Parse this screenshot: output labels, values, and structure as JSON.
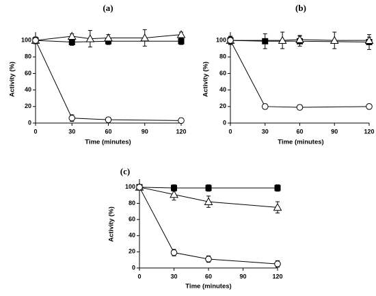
{
  "chart_data": [
    {
      "type": "line",
      "panel_label": "(a)",
      "xlabel": "Time (minutes)",
      "ylabel": "Activity (%)",
      "xlim": [
        0,
        120
      ],
      "ylim": [
        0,
        110
      ],
      "xticks": [
        0,
        30,
        60,
        90,
        120
      ],
      "yticks": [
        0,
        20,
        40,
        60,
        80,
        100
      ],
      "series": [
        {
          "marker": "square",
          "x": [
            0,
            30,
            60,
            120
          ],
          "y": [
            100,
            98,
            99,
            99
          ],
          "err": [
            4,
            4,
            4,
            4
          ]
        },
        {
          "marker": "triangle",
          "x": [
            0,
            30,
            45,
            60,
            90,
            120
          ],
          "y": [
            100,
            105,
            102,
            103,
            103,
            107
          ],
          "err": [
            4,
            3,
            10,
            4,
            10,
            3
          ]
        },
        {
          "marker": "circle",
          "x": [
            0,
            30,
            60,
            120
          ],
          "y": [
            100,
            6,
            4,
            3
          ],
          "err": [
            4,
            4,
            3,
            3
          ]
        }
      ]
    },
    {
      "type": "line",
      "panel_label": "(b)",
      "xlabel": "Time (minutes)",
      "ylabel": "Activity (%)",
      "xlim": [
        0,
        120
      ],
      "ylim": [
        0,
        110
      ],
      "xticks": [
        0,
        30,
        60,
        90,
        120
      ],
      "yticks": [
        0,
        20,
        40,
        60,
        80,
        100
      ],
      "series": [
        {
          "marker": "square",
          "x": [
            0,
            30,
            60,
            120
          ],
          "y": [
            100,
            99,
            99,
            98
          ],
          "err": [
            5,
            9,
            6,
            9
          ]
        },
        {
          "marker": "triangle",
          "x": [
            0,
            45,
            60,
            90,
            120
          ],
          "y": [
            100,
            100,
            101,
            100,
            100
          ],
          "err": [
            4,
            10,
            5,
            10,
            4
          ]
        },
        {
          "marker": "circle",
          "x": [
            0,
            30,
            60,
            120
          ],
          "y": [
            100,
            20,
            19,
            20
          ],
          "err": [
            4,
            3,
            3,
            3
          ]
        }
      ]
    },
    {
      "type": "line",
      "panel_label": "(c)",
      "xlabel": "Time (minutes)",
      "ylabel": "Activity (%)",
      "xlim": [
        0,
        120
      ],
      "ylim": [
        0,
        110
      ],
      "xticks": [
        0,
        30,
        60,
        90,
        120
      ],
      "yticks": [
        0,
        20,
        40,
        60,
        80,
        100
      ],
      "series": [
        {
          "marker": "square",
          "x": [
            0,
            30,
            60,
            120
          ],
          "y": [
            100,
            99,
            99,
            99
          ],
          "err": [
            3,
            4,
            4,
            4
          ]
        },
        {
          "marker": "triangle",
          "x": [
            0,
            30,
            60,
            120
          ],
          "y": [
            100,
            91,
            82,
            75
          ],
          "err": [
            3,
            7,
            7,
            7
          ]
        },
        {
          "marker": "circle",
          "x": [
            0,
            30,
            60,
            120
          ],
          "y": [
            100,
            19,
            11,
            5
          ],
          "err": [
            3,
            4,
            4,
            4
          ]
        }
      ]
    }
  ]
}
